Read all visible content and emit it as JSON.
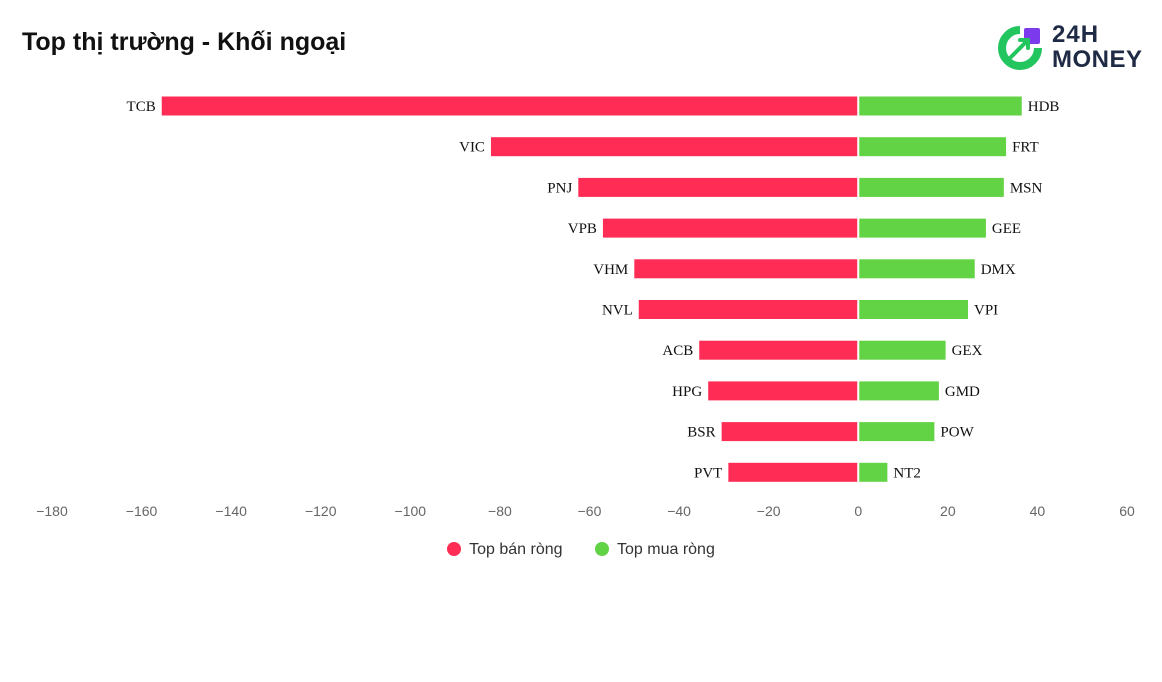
{
  "title": "Top thị trường - Khối ngoại",
  "logo": {
    "line1": "24H",
    "line2": "MONEY"
  },
  "colors": {
    "sell": "#ff2d55",
    "buy": "#62d344",
    "axis": "#cccccc"
  },
  "chart_data": {
    "type": "bar",
    "orientation": "horizontal",
    "xlim": [
      -180,
      60
    ],
    "x_ticks": [
      "−180",
      "−160",
      "−140",
      "−120",
      "−100",
      "−80",
      "−60",
      "−40",
      "−20",
      "0",
      "20",
      "40",
      "60"
    ],
    "grid": false,
    "legend_position": "bottom",
    "series": [
      {
        "name": "Top bán ròng",
        "categories": [
          "TCB",
          "VIC",
          "PNJ",
          "VPB",
          "VHM",
          "NVL",
          "ACB",
          "HPG",
          "BSR",
          "PVT"
        ],
        "values": [
          -155.5,
          -82,
          -62.5,
          -57,
          -50,
          -49,
          -35.5,
          -33.5,
          -30.5,
          -29
        ]
      },
      {
        "name": "Top mua ròng",
        "categories": [
          "HDB",
          "FRT",
          "MSN",
          "GEE",
          "DMX",
          "VPI",
          "GEX",
          "GMD",
          "POW",
          "NT2"
        ],
        "values": [
          36.5,
          33,
          32.5,
          28.5,
          26,
          24.5,
          19.5,
          18,
          17,
          6.5
        ]
      }
    ]
  }
}
